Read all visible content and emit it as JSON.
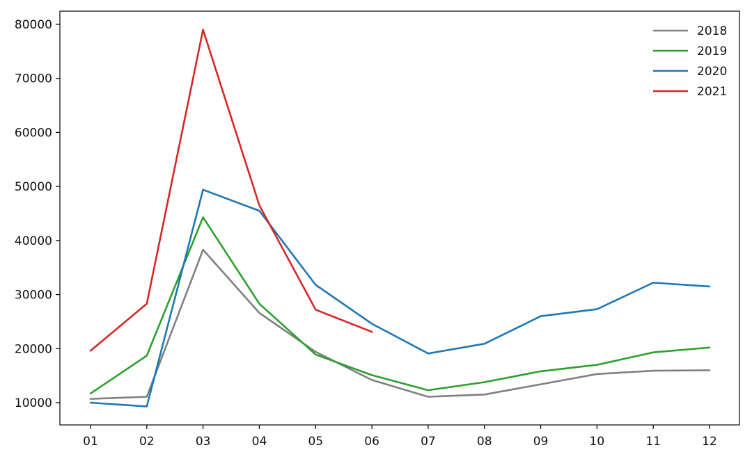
{
  "chart_data": {
    "type": "line",
    "title": "",
    "xlabel": "",
    "ylabel": "",
    "categories": [
      "01",
      "02",
      "03",
      "04",
      "05",
      "06",
      "07",
      "08",
      "09",
      "10",
      "11",
      "12"
    ],
    "ylim": [
      6000,
      82000
    ],
    "yticks": [
      10000,
      20000,
      30000,
      40000,
      50000,
      60000,
      70000,
      80000
    ],
    "grid": false,
    "legend_position": "top-right",
    "series": [
      {
        "name": "2018",
        "color": "#808080",
        "values": [
          10700,
          11100,
          38300,
          26600,
          19400,
          14200,
          11100,
          11500,
          13400,
          15300,
          15900,
          16000
        ]
      },
      {
        "name": "2019",
        "color": "#2ca02c",
        "values": [
          11700,
          18700,
          44300,
          28300,
          18900,
          15100,
          12300,
          13800,
          15800,
          17000,
          19300,
          20200
        ]
      },
      {
        "name": "2020",
        "color": "#1f77b4",
        "values": [
          10000,
          9300,
          49400,
          45500,
          31800,
          24600,
          19100,
          20900,
          26000,
          27300,
          32200,
          31500
        ]
      },
      {
        "name": "2021",
        "color": "#d62728",
        "values": [
          19600,
          28300,
          79000,
          46500,
          27200,
          23100,
          null,
          null,
          null,
          null,
          null,
          null
        ]
      }
    ]
  }
}
